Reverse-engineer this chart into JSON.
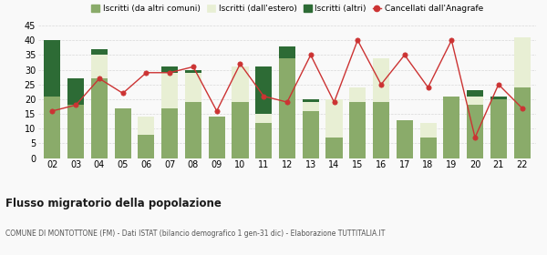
{
  "years": [
    "02",
    "03",
    "04",
    "05",
    "06",
    "07",
    "08",
    "09",
    "10",
    "11",
    "12",
    "13",
    "14",
    "15",
    "16",
    "17",
    "18",
    "19",
    "20",
    "21",
    "22"
  ],
  "iscritti_comuni": [
    21,
    18,
    27,
    17,
    8,
    17,
    19,
    14,
    19,
    12,
    34,
    16,
    7,
    19,
    19,
    13,
    7,
    21,
    18,
    20,
    24
  ],
  "iscritti_estero": [
    0,
    0,
    8,
    0,
    6,
    12,
    10,
    0,
    12,
    3,
    0,
    3,
    13,
    5,
    15,
    0,
    5,
    0,
    3,
    0,
    17
  ],
  "iscritti_altri": [
    19,
    9,
    2,
    0,
    0,
    2,
    1,
    0,
    0,
    16,
    4,
    1,
    0,
    0,
    0,
    0,
    0,
    0,
    2,
    1,
    0
  ],
  "cancellati": [
    16,
    18,
    27,
    22,
    29,
    29,
    31,
    16,
    32,
    21,
    19,
    35,
    19,
    40,
    25,
    35,
    24,
    40,
    7,
    25,
    17
  ],
  "bar_color_comuni": "#8aab6a",
  "bar_color_estero": "#e8efd4",
  "bar_color_altri": "#2d6b35",
  "line_color": "#cc3333",
  "bg_color": "#f9f9f9",
  "grid_color": "#d8d8d8",
  "title": "Flusso migratorio della popolazione",
  "subtitle": "COMUNE DI MONTOTTONE (FM) - Dati ISTAT (bilancio demografico 1 gen-31 dic) - Elaborazione TUTTITALIA.IT",
  "legend_labels": [
    "Iscritti (da altri comuni)",
    "Iscritti (dall'estero)",
    "Iscritti (altri)",
    "Cancellati dall'Anagrafe"
  ],
  "ylim": [
    0,
    45
  ],
  "yticks": [
    0,
    5,
    10,
    15,
    20,
    25,
    30,
    35,
    40,
    45
  ]
}
